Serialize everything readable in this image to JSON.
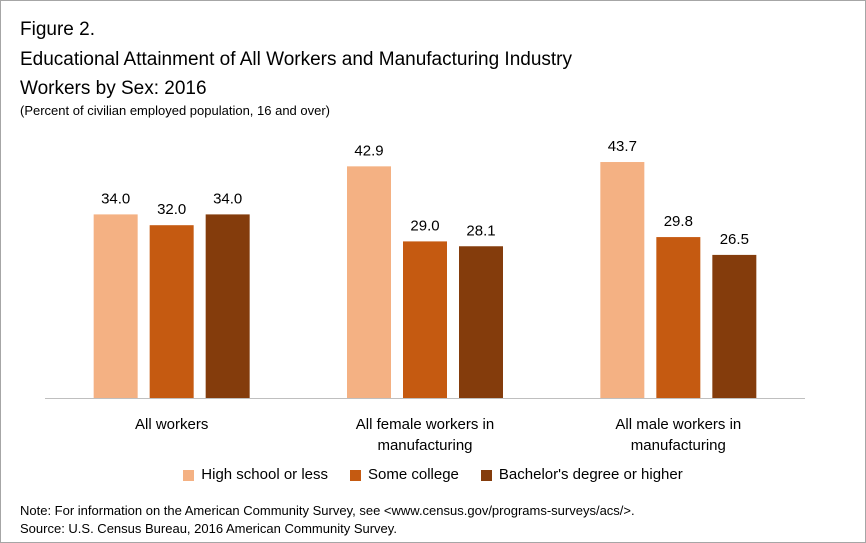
{
  "header": {
    "figure_label": "Figure 2.",
    "title_line1": "Educational Attainment of All Workers and Manufacturing Industry",
    "title_line2": "Workers by Sex: 2016",
    "subtitle": "(Percent of civilian employed population, 16 and over)"
  },
  "chart_data": {
    "type": "bar",
    "categories": [
      [
        "All workers"
      ],
      [
        "All female workers in",
        "manufacturing"
      ],
      [
        "All male workers in",
        "manufacturing"
      ]
    ],
    "series": [
      {
        "name": "High school or less",
        "color": "#f4b183",
        "values": [
          34.0,
          42.9,
          43.7
        ]
      },
      {
        "name": "Some college",
        "color": "#c55a11",
        "values": [
          32.0,
          29.0,
          29.8
        ]
      },
      {
        "name": "Bachelor's degree or higher",
        "color": "#843c0c",
        "values": [
          34.0,
          28.1,
          26.5
        ]
      }
    ],
    "ylim": [
      0,
      50
    ],
    "grid": false,
    "data_labels": true,
    "legend_position": "bottom"
  },
  "footer": {
    "note": "Note: For information on the American Community Survey, see <www.census.gov/programs-surveys/acs/>.",
    "source": "Source: U.S. Census Bureau, 2016 American Community Survey."
  }
}
